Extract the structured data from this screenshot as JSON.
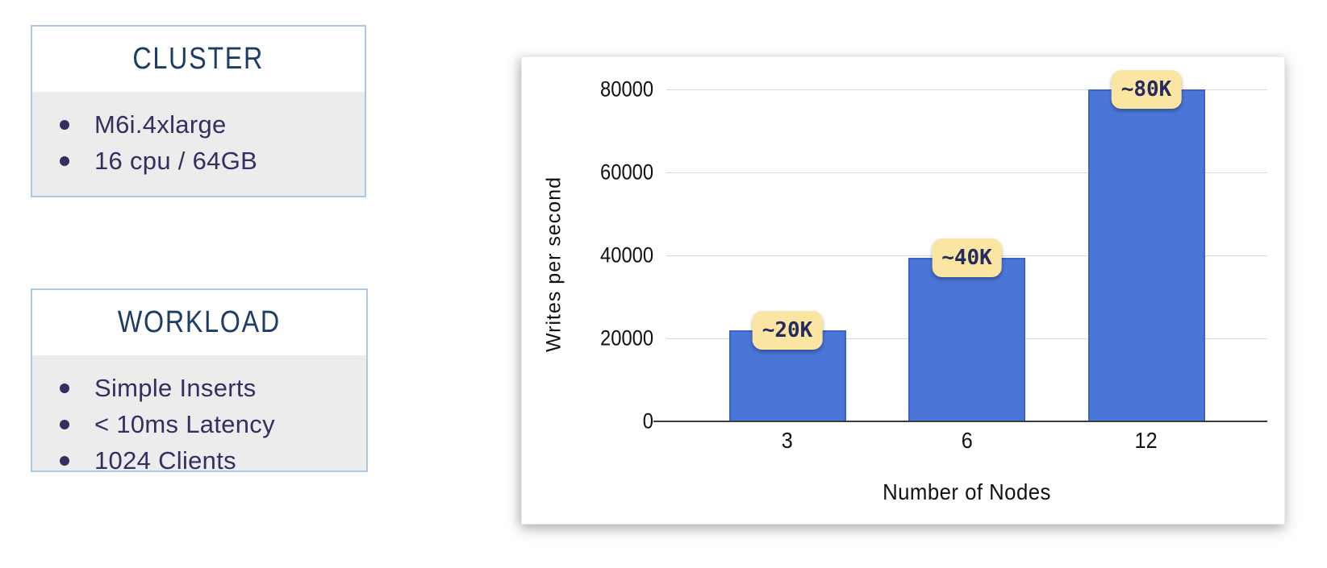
{
  "cluster_box": {
    "title": "CLUSTER",
    "items": [
      "M6i.4xlarge",
      "16 cpu / 64GB"
    ]
  },
  "workload_box": {
    "title": "WORKLOAD",
    "items": [
      "Simple Inserts",
      "< 10ms Latency",
      "1024 Clients"
    ]
  },
  "chart_data": {
    "type": "bar",
    "title": "",
    "categories": [
      "3",
      "6",
      "12"
    ],
    "values": [
      22000,
      39500,
      80000
    ],
    "bar_labels": [
      "~20K",
      "~40K",
      "~80K"
    ],
    "xlabel": "Number of Nodes",
    "ylabel": "Writes per second",
    "ylim": [
      0,
      80000
    ],
    "yticks": [
      0,
      20000,
      40000,
      60000,
      80000
    ],
    "grid": true,
    "legend": false,
    "bar_color": "#4a76d8",
    "bar_border_color": "#3b62c4",
    "annotation_bg": "#fae5a2",
    "annotation_text_color": "#262b5f"
  },
  "colors": {
    "box_border": "#abc8ea",
    "box_body_bg": "#ececec",
    "heading_text": "#1d3c66",
    "item_text": "#322f61",
    "gridline": "#d9d9d9",
    "axis": "#3d3d3d"
  }
}
